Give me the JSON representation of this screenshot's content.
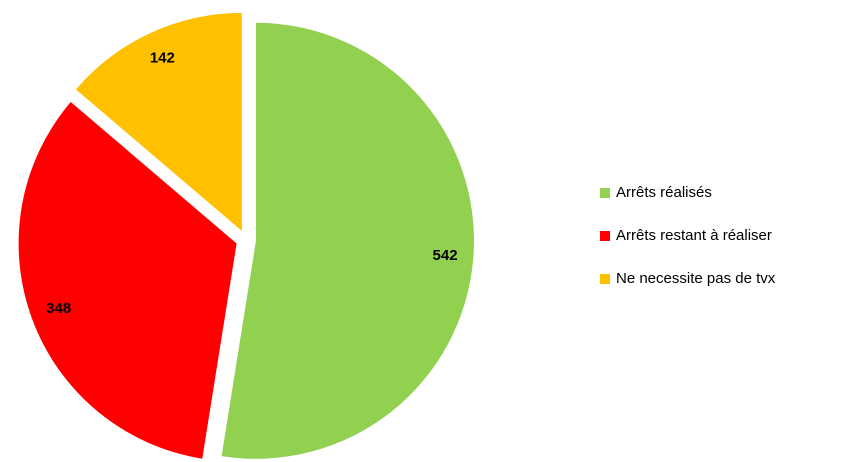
{
  "chart_data": {
    "type": "pie",
    "categories": [
      "Arrêts réalisés",
      "Arrêts restant à réaliser",
      "Ne necessite pas de tvx"
    ],
    "values": [
      542,
      348,
      142
    ],
    "colors": [
      "#92d050",
      "#ff0000",
      "#ffc000"
    ],
    "legend": "right"
  }
}
